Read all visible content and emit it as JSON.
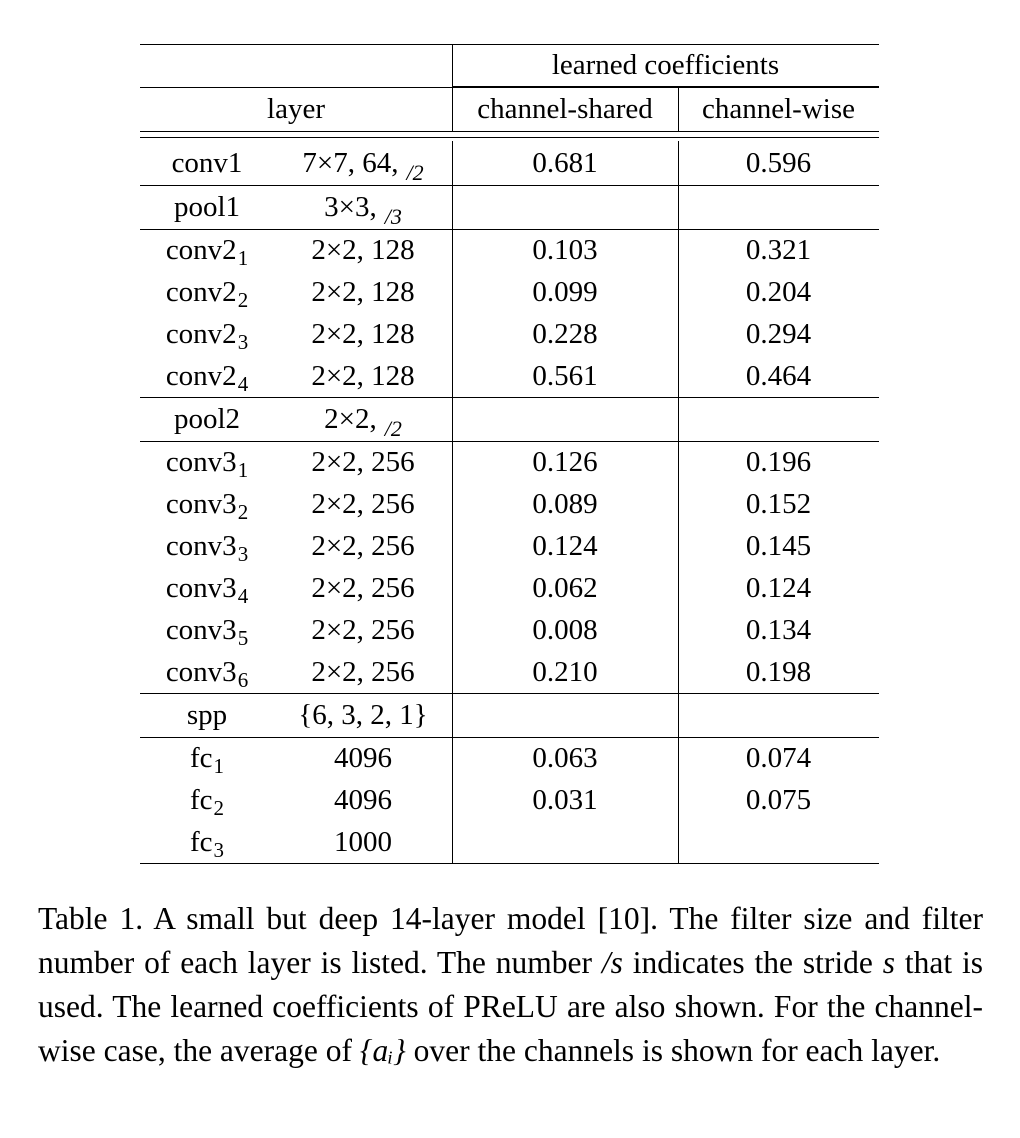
{
  "header": {
    "group_label": "learned coefficients",
    "layer_label": "layer",
    "col_shared": "channel-shared",
    "col_wise": "channel-wise"
  },
  "rows": [
    {
      "name": "conv1",
      "sub": "",
      "spec": "7×7, 64,",
      "stride": "/2",
      "shared": "0.681",
      "wise": "0.596"
    },
    {
      "name": "pool1",
      "sub": "",
      "spec": "3×3,",
      "stride": "/3",
      "shared": "",
      "wise": ""
    },
    {
      "name": "conv2",
      "sub": "1",
      "spec": "2×2, 128",
      "stride": "",
      "shared": "0.103",
      "wise": "0.321"
    },
    {
      "name": "conv2",
      "sub": "2",
      "spec": "2×2, 128",
      "stride": "",
      "shared": "0.099",
      "wise": "0.204"
    },
    {
      "name": "conv2",
      "sub": "3",
      "spec": "2×2, 128",
      "stride": "",
      "shared": "0.228",
      "wise": "0.294"
    },
    {
      "name": "conv2",
      "sub": "4",
      "spec": "2×2, 128",
      "stride": "",
      "shared": "0.561",
      "wise": "0.464"
    },
    {
      "name": "pool2",
      "sub": "",
      "spec": "2×2,",
      "stride": "/2",
      "shared": "",
      "wise": ""
    },
    {
      "name": "conv3",
      "sub": "1",
      "spec": "2×2, 256",
      "stride": "",
      "shared": "0.126",
      "wise": "0.196"
    },
    {
      "name": "conv3",
      "sub": "2",
      "spec": "2×2, 256",
      "stride": "",
      "shared": "0.089",
      "wise": "0.152"
    },
    {
      "name": "conv3",
      "sub": "3",
      "spec": "2×2, 256",
      "stride": "",
      "shared": "0.124",
      "wise": "0.145"
    },
    {
      "name": "conv3",
      "sub": "4",
      "spec": "2×2, 256",
      "stride": "",
      "shared": "0.062",
      "wise": "0.124"
    },
    {
      "name": "conv3",
      "sub": "5",
      "spec": "2×2, 256",
      "stride": "",
      "shared": "0.008",
      "wise": "0.134"
    },
    {
      "name": "conv3",
      "sub": "6",
      "spec": "2×2, 256",
      "stride": "",
      "shared": "0.210",
      "wise": "0.198"
    },
    {
      "name": "spp",
      "sub": "",
      "spec": "{6, 3, 2, 1}",
      "stride": "",
      "shared": "",
      "wise": ""
    },
    {
      "name": "fc",
      "sub": "1",
      "spec": "4096",
      "stride": "",
      "shared": "0.063",
      "wise": "0.074"
    },
    {
      "name": "fc",
      "sub": "2",
      "spec": "4096",
      "stride": "",
      "shared": "0.031",
      "wise": "0.075"
    },
    {
      "name": "fc",
      "sub": "3",
      "spec": "1000",
      "stride": "",
      "shared": "",
      "wise": ""
    }
  ],
  "caption": {
    "part1": "Table 1. A small but deep 14-layer model [10]. The filter size and filter number of each layer is listed. The number ",
    "italic1": "/s",
    "part2": " indicates the stride ",
    "italic2": "s",
    "part3": " that is used. The learned coefficients of PReLU are also shown. For the channel-wise case, the average of ",
    "math": "{aᵢ}",
    "part4": " over the channels is shown for each layer."
  }
}
